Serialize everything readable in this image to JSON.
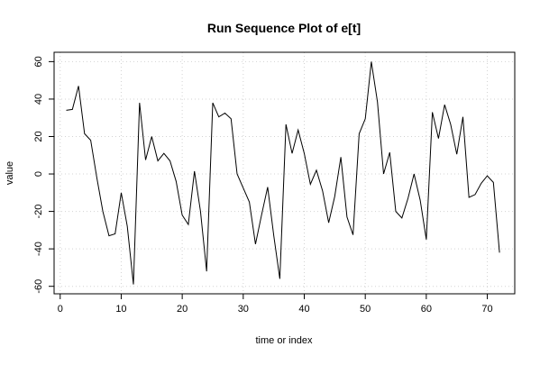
{
  "chart_data": {
    "type": "line",
    "title": "Run Sequence Plot of e[t]",
    "xlabel": "time or index",
    "ylabel": "value",
    "xlim": [
      -1,
      74.5
    ],
    "ylim": [
      -64,
      65
    ],
    "xticks": [
      0,
      10,
      20,
      30,
      40,
      50,
      60,
      70
    ],
    "yticks": [
      -60,
      -40,
      -20,
      0,
      20,
      40,
      60
    ],
    "grid": true,
    "series": [
      {
        "x": [
          1,
          2,
          3,
          4,
          5,
          6,
          7,
          8,
          9,
          10,
          11,
          12,
          13,
          14,
          15,
          16,
          17,
          18,
          19,
          20,
          21,
          22,
          23,
          24,
          25,
          26,
          27,
          28,
          29,
          30,
          31,
          32,
          33,
          34,
          35,
          36,
          37,
          38,
          39,
          40,
          41,
          42,
          43,
          44,
          45,
          46,
          47,
          48,
          49,
          50,
          51,
          52,
          53,
          54,
          55,
          56,
          57,
          58,
          59,
          60,
          61,
          62,
          63,
          64,
          65,
          66,
          67,
          68,
          69,
          70,
          71,
          72
        ],
        "values": [
          34,
          34.5,
          47,
          21.5,
          18,
          -2,
          -20,
          -33,
          -32,
          -10,
          -28,
          -59,
          38,
          7.5,
          20,
          7,
          11,
          7,
          -4,
          -22,
          -27,
          1.5,
          -20,
          -52,
          38,
          30.5,
          32.5,
          29.5,
          0,
          -7.5,
          -15,
          -37.5,
          -22,
          -7,
          -33,
          -56,
          26.5,
          11,
          23.5,
          11,
          -5.5,
          2,
          -9,
          -26,
          -12,
          9,
          -23,
          -32.5,
          21.5,
          29.5,
          60,
          38.5,
          0,
          11.5,
          -20,
          -23.5,
          -13,
          0,
          -14,
          -35,
          33,
          19,
          37,
          26.5,
          10.5,
          30.5,
          -12.5,
          -11,
          -5,
          -1,
          -4.5,
          -42
        ]
      }
    ]
  }
}
